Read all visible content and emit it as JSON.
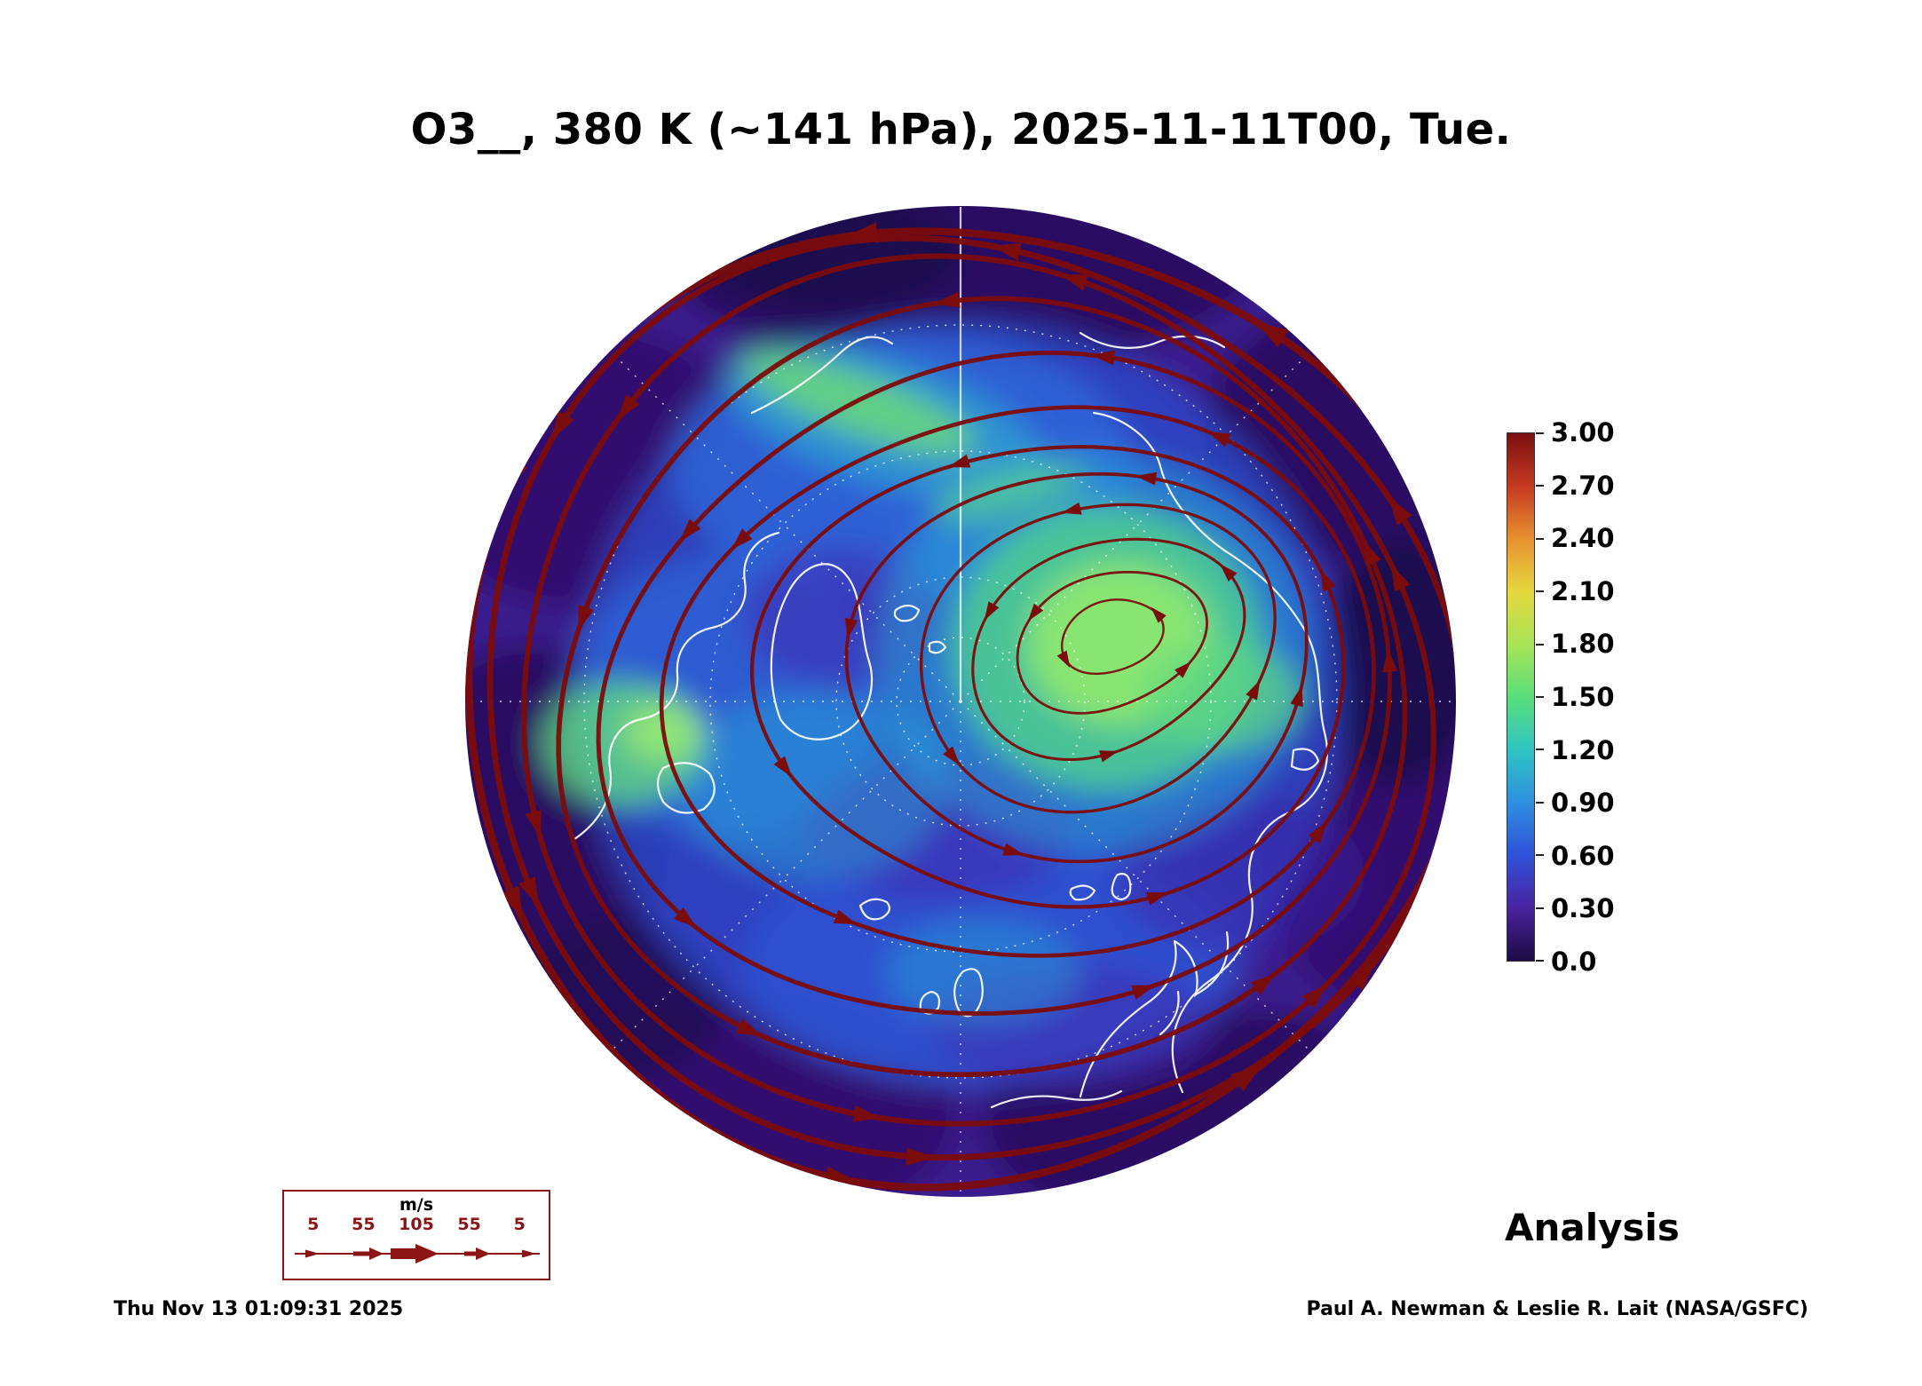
{
  "title": "O3__, 380 K (~141 hPa), 2025-11-11T00, Tue.",
  "footer": {
    "timestamp": "Thu Nov 13 01:09:31 2025",
    "credit": "Paul A. Newman & Leslie R. Lait (NASA/GSFC)",
    "analysis_label": "Analysis"
  },
  "colorbar": {
    "ticks": [
      "3.00",
      "2.70",
      "2.40",
      "2.10",
      "1.80",
      "1.50",
      "1.20",
      "0.90",
      "0.60",
      "0.30",
      "0.0"
    ],
    "colors_bottom_to_top": [
      "#1c0b45",
      "#4a23a0",
      "#2f52d8",
      "#2f8fe0",
      "#2fc4c4",
      "#5ade7a",
      "#a8e455",
      "#e6d83f",
      "#e89030",
      "#c43a20",
      "#7a0f10"
    ]
  },
  "wind_legend": {
    "units_label": "m/s",
    "values": [
      "5",
      "55",
      "105",
      "55",
      "5"
    ],
    "color": "#8b1515"
  },
  "map": {
    "streamline_color": "#7b0c0c",
    "coastline_color": "#ffffff",
    "graticule_color": "#ffffff"
  },
  "chart_data": {
    "type": "heatmap",
    "title": "O3__, 380 K (~141 hPa), 2025-11-11T00, Tue.",
    "quantity": "O3",
    "level": "380 K (~141 hPa)",
    "valid_time": "2025-11-11T00, Tue.",
    "run_type": "Analysis",
    "projection": "north polar stereographic",
    "colorbar": {
      "min": 0.0,
      "max": 3.0,
      "tick_step": 0.3,
      "ticks": [
        0.0,
        0.3,
        0.6,
        0.9,
        1.2,
        1.5,
        1.8,
        2.1,
        2.4,
        2.7,
        3.0
      ]
    },
    "overlays": [
      {
        "name": "wind streamlines with arrowheads",
        "color": "#7b0c0c",
        "speed_scale_ms": [
          5,
          55,
          105,
          55,
          5
        ]
      },
      {
        "name": "coastlines",
        "color": "#ffffff"
      },
      {
        "name": "graticule",
        "style": "white dashed latitude circles and meridians"
      }
    ],
    "field_summary": {
      "max_region": "broad maximum (~1.2-1.5) green area over the sector right of the pole",
      "secondary_max": "smaller green patch left of center and a thin green filament above center",
      "min_region": "low values (~0.0-0.3, dark purple) around the outer rim of the disk",
      "circulation": "closed circumpolar vortex, counterclockwise flow, strongest (thick streamlines) near the rim"
    },
    "generated_label": "Thu Nov 13 01:09:31 2025"
  }
}
